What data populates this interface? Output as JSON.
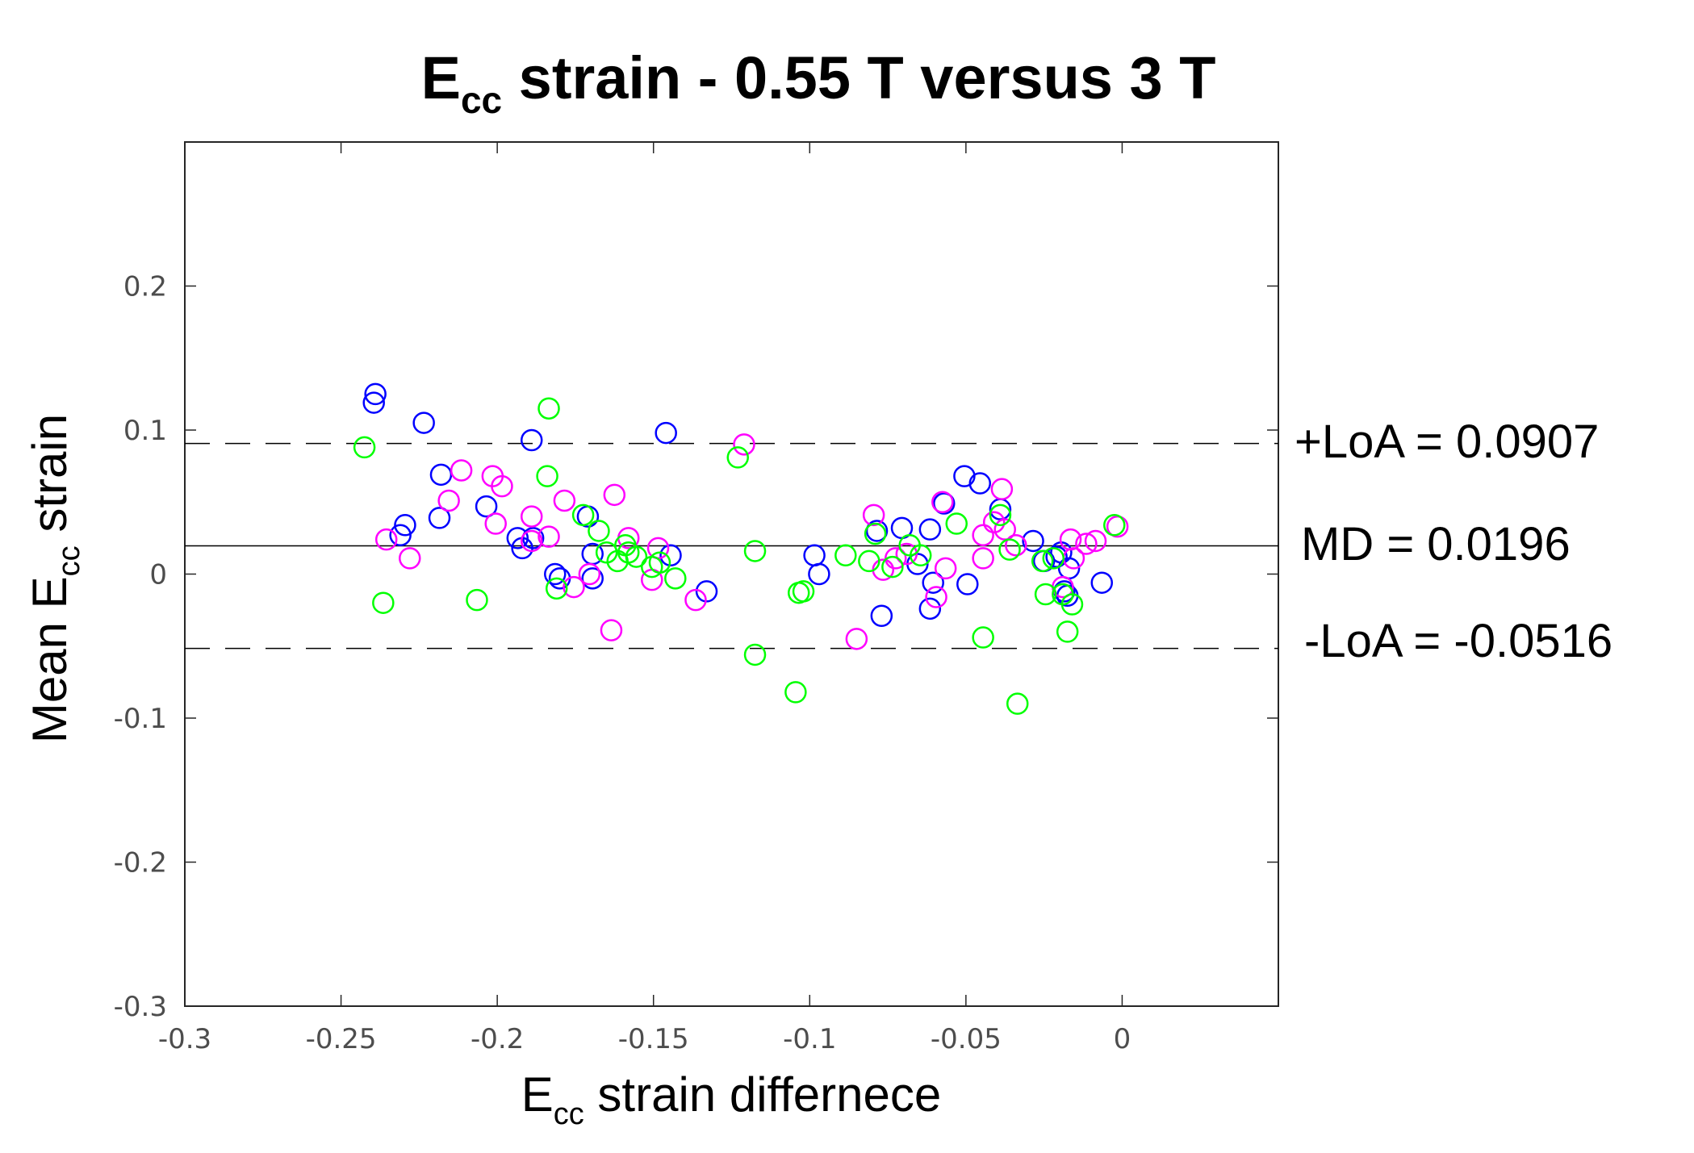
{
  "chart_data": {
    "type": "scatter",
    "title": {
      "main": "E",
      "sub": "cc",
      "rest": " strain -  0.55 T versus 3 T"
    },
    "xlabel": {
      "main": "E",
      "sub": "cc",
      "rest": " strain differnece"
    },
    "ylabel": {
      "main": "Mean E",
      "sub": "cc",
      "rest": " strain"
    },
    "xlim": [
      -0.3,
      0.05
    ],
    "ylim": [
      -0.3,
      0.3
    ],
    "xticks": [
      -0.3,
      -0.25,
      -0.2,
      -0.15,
      -0.1,
      -0.05,
      0
    ],
    "xtick_labels": [
      "-0.3",
      "-0.25",
      "-0.2",
      "-0.15",
      "-0.1",
      "-0.05",
      "0"
    ],
    "yticks": [
      -0.3,
      -0.2,
      -0.1,
      0,
      0.1,
      0.2
    ],
    "ytick_labels": [
      "-0.3",
      "-0.2",
      "-0.1",
      "0",
      "0.1",
      "0.2"
    ],
    "grid": false,
    "reference_lines": [
      {
        "name": "upper-loa",
        "value": 0.0907,
        "style": "dashed",
        "label": "+LoA = 0.0907"
      },
      {
        "name": "mean-difference",
        "value": 0.0196,
        "style": "solid",
        "label": "MD = 0.0196"
      },
      {
        "name": "lower-loa",
        "value": -0.0516,
        "style": "dashed",
        "label": "-LoA = -0.0516"
      }
    ],
    "series": [
      {
        "name": "blue",
        "color": "#0000ff",
        "points": [
          [
            -0.239,
            0.125
          ],
          [
            -0.2395,
            0.119
          ],
          [
            -0.2235,
            0.105
          ],
          [
            -0.2295,
            0.034
          ],
          [
            -0.231,
            0.027
          ],
          [
            -0.218,
            0.069
          ],
          [
            -0.2185,
            0.039
          ],
          [
            -0.2035,
            0.047
          ],
          [
            -0.189,
            0.093
          ],
          [
            -0.1885,
            0.025
          ],
          [
            -0.1935,
            0.025
          ],
          [
            -0.192,
            0.018
          ],
          [
            -0.1815,
            0.0
          ],
          [
            -0.18,
            -0.003
          ],
          [
            -0.171,
            0.04
          ],
          [
            -0.1695,
            0.014
          ],
          [
            -0.1695,
            -0.003
          ],
          [
            -0.146,
            0.098
          ],
          [
            -0.1445,
            0.013
          ],
          [
            -0.133,
            -0.012
          ],
          [
            -0.0985,
            0.013
          ],
          [
            -0.097,
            0.0
          ],
          [
            -0.0785,
            0.03
          ],
          [
            -0.077,
            -0.029
          ],
          [
            -0.0705,
            0.032
          ],
          [
            -0.0655,
            0.007
          ],
          [
            -0.0615,
            0.031
          ],
          [
            -0.0605,
            -0.006
          ],
          [
            -0.0615,
            -0.024
          ],
          [
            -0.057,
            0.049
          ],
          [
            -0.0505,
            0.068
          ],
          [
            -0.0495,
            -0.007
          ],
          [
            -0.0455,
            0.063
          ],
          [
            -0.039,
            0.045
          ],
          [
            -0.0285,
            0.023
          ],
          [
            -0.025,
            0.009
          ],
          [
            -0.021,
            0.012
          ],
          [
            -0.0195,
            0.015
          ],
          [
            -0.0185,
            -0.012
          ],
          [
            -0.0175,
            -0.015
          ],
          [
            -0.017,
            0.004
          ],
          [
            -0.0065,
            -0.006
          ]
        ]
      },
      {
        "name": "magenta",
        "color": "#ff00ff",
        "points": [
          [
            -0.2355,
            0.024
          ],
          [
            -0.228,
            0.011
          ],
          [
            -0.2155,
            0.051
          ],
          [
            -0.2115,
            0.072
          ],
          [
            -0.2015,
            0.068
          ],
          [
            -0.2005,
            0.035
          ],
          [
            -0.1985,
            0.061
          ],
          [
            -0.189,
            0.04
          ],
          [
            -0.189,
            0.023
          ],
          [
            -0.1835,
            0.026
          ],
          [
            -0.1785,
            0.051
          ],
          [
            -0.1755,
            -0.009
          ],
          [
            -0.1705,
            0.0
          ],
          [
            -0.1625,
            0.055
          ],
          [
            -0.1635,
            -0.039
          ],
          [
            -0.158,
            0.025
          ],
          [
            -0.1485,
            0.018
          ],
          [
            -0.1505,
            -0.004
          ],
          [
            -0.1365,
            -0.018
          ],
          [
            -0.121,
            0.09
          ],
          [
            -0.085,
            -0.045
          ],
          [
            -0.0795,
            0.041
          ],
          [
            -0.0765,
            0.003
          ],
          [
            -0.0725,
            0.011
          ],
          [
            -0.069,
            0.014
          ],
          [
            -0.0575,
            0.05
          ],
          [
            -0.0595,
            -0.016
          ],
          [
            -0.0565,
            0.004
          ],
          [
            -0.0445,
            0.027
          ],
          [
            -0.0445,
            0.011
          ],
          [
            -0.041,
            0.036
          ],
          [
            -0.0385,
            0.059
          ],
          [
            -0.0375,
            0.031
          ],
          [
            -0.034,
            0.02
          ],
          [
            -0.019,
            -0.009
          ],
          [
            -0.0165,
            0.024
          ],
          [
            -0.0155,
            0.011
          ],
          [
            -0.0115,
            0.021
          ],
          [
            -0.0085,
            0.023
          ],
          [
            -0.0015,
            0.033
          ]
        ]
      },
      {
        "name": "green",
        "color": "#00ff00",
        "points": [
          [
            -0.2425,
            0.088
          ],
          [
            -0.2365,
            -0.02
          ],
          [
            -0.2065,
            -0.018
          ],
          [
            -0.1835,
            0.115
          ],
          [
            -0.184,
            0.068
          ],
          [
            -0.181,
            -0.01
          ],
          [
            -0.1725,
            0.041
          ],
          [
            -0.1675,
            0.03
          ],
          [
            -0.165,
            0.015
          ],
          [
            -0.1615,
            0.009
          ],
          [
            -0.159,
            0.02
          ],
          [
            -0.158,
            0.015
          ],
          [
            -0.1555,
            0.012
          ],
          [
            -0.1505,
            0.005
          ],
          [
            -0.148,
            0.008
          ],
          [
            -0.143,
            -0.003
          ],
          [
            -0.123,
            0.081
          ],
          [
            -0.1175,
            0.016
          ],
          [
            -0.1175,
            -0.056
          ],
          [
            -0.1045,
            -0.082
          ],
          [
            -0.1035,
            -0.013
          ],
          [
            -0.102,
            -0.012
          ],
          [
            -0.0885,
            0.013
          ],
          [
            -0.081,
            0.009
          ],
          [
            -0.079,
            0.028
          ],
          [
            -0.0735,
            0.005
          ],
          [
            -0.068,
            0.02
          ],
          [
            -0.0645,
            0.013
          ],
          [
            -0.053,
            0.035
          ],
          [
            -0.0445,
            -0.044
          ],
          [
            -0.039,
            0.041
          ],
          [
            -0.036,
            0.017
          ],
          [
            -0.0335,
            -0.09
          ],
          [
            -0.0255,
            0.009
          ],
          [
            -0.0245,
            -0.014
          ],
          [
            -0.022,
            0.011
          ],
          [
            -0.019,
            -0.014
          ],
          [
            -0.0175,
            -0.04
          ],
          [
            -0.016,
            -0.021
          ],
          [
            -0.0025,
            0.034
          ]
        ]
      }
    ]
  }
}
